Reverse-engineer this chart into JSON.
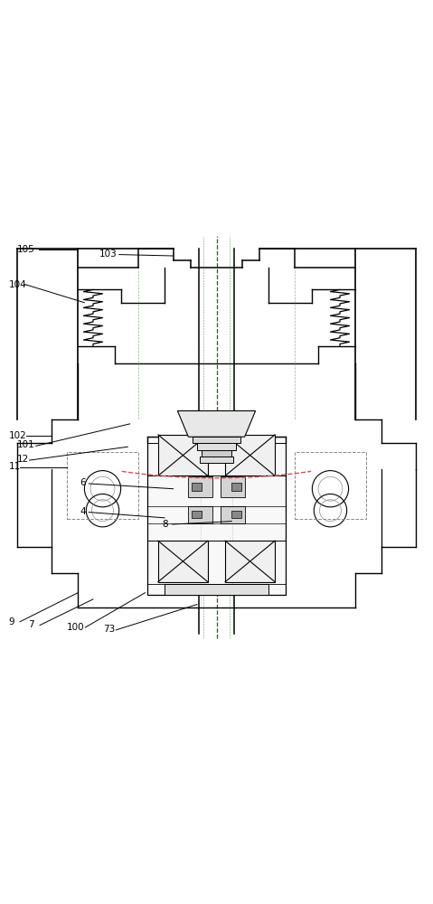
{
  "bg_color": "#ffffff",
  "line_color": "#000000",
  "center_line_color": "#007700",
  "dashed_line_color": "#cc5555",
  "label_color": "#000000",
  "fig_width": 4.79,
  "fig_height": 10.0
}
